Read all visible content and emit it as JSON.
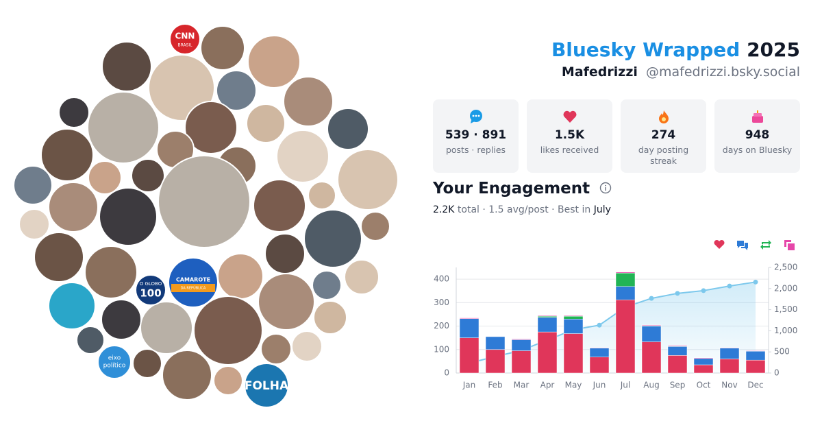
{
  "header": {
    "title": "Bluesky Wrapped",
    "year": "2025",
    "name": "Mafedrizzi",
    "handle": "@mafedrizzi.bsky.social"
  },
  "logos": {
    "cnn": [
      "CNN",
      "BRASIL"
    ],
    "globo": [
      "O GLOBO",
      "100"
    ],
    "camarote": [
      "CAMAROTE",
      "DA REPÚBLICA"
    ],
    "eixo": [
      "eixo",
      "político"
    ],
    "folha": "FOLHA"
  },
  "stats": [
    {
      "value": "539 · 891",
      "label": "posts · replies"
    },
    {
      "value": "1.5K",
      "label": "likes received"
    },
    {
      "value": "274",
      "label": "day posting streak"
    },
    {
      "value": "948",
      "label": "days on Bluesky"
    }
  ],
  "engagement": {
    "title": "Your Engagement",
    "total": "2.2K",
    "summary": "total · 1.5 avg/post · Best in",
    "best": "July"
  },
  "chart_data": {
    "type": "stacked-bar-line",
    "categories": [
      "Jan",
      "Feb",
      "Mar",
      "Apr",
      "May",
      "Jun",
      "Jul",
      "Aug",
      "Sep",
      "Oct",
      "Nov",
      "Dec"
    ],
    "series": [
      {
        "color": "#e0365a",
        "values": [
          150,
          100,
          95,
          175,
          168,
          68,
          312,
          133,
          75,
          35,
          60,
          55
        ]
      },
      {
        "color": "#2e7bd6",
        "values": [
          82,
          55,
          47,
          62,
          62,
          38,
          57,
          67,
          38,
          27,
          46,
          38
        ]
      },
      {
        "color": "#22b455",
        "values": [
          0,
          0,
          0,
          5,
          12,
          0,
          57,
          2,
          2,
          0,
          0,
          0
        ]
      },
      {
        "color": "#e646a9",
        "values": [
          3,
          0,
          3,
          3,
          3,
          2,
          4,
          3,
          3,
          3,
          2,
          2
        ]
      },
      {
        "color": "#7cc8ec",
        "axis": "y2",
        "values": [
          235,
          390,
          535,
          780,
          1025,
          1133,
          1563,
          1768,
          1886,
          1951,
          2059,
          2154
        ]
      }
    ],
    "ylim": [
      0,
      450
    ],
    "yticks": [
      0,
      100,
      200,
      300,
      400
    ],
    "y2lim": [
      0,
      2500
    ],
    "y2ticks": [
      0,
      500,
      {
        "value": 1000,
        "label": "1,000"
      },
      {
        "value": 1500,
        "label": "1,500"
      },
      {
        "value": 2000,
        "label": "2,000"
      },
      {
        "value": 2500,
        "label": "2,500"
      }
    ],
    "grid": true
  }
}
